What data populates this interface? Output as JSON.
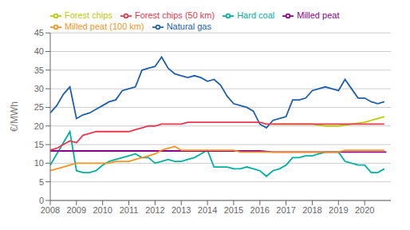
{
  "chart_data": {
    "type": "line",
    "ylabel": "€/MWh",
    "xlim": [
      2008.0,
      2021.0
    ],
    "xticks": [
      2008,
      2009,
      2010,
      2011,
      2012,
      2013,
      2014,
      2015,
      2016,
      2017,
      2018,
      2019,
      2020
    ],
    "ylim": [
      0,
      45
    ],
    "yticks": [
      0,
      5,
      10,
      15,
      20,
      25,
      30,
      35,
      40,
      45
    ],
    "grid": true,
    "legend": "upper left",
    "series": [
      {
        "name": "Natural gas",
        "color": "#2060a8",
        "x": [
          2008.0,
          2008.25,
          2008.5,
          2008.75,
          2009.0,
          2009.25,
          2009.5,
          2009.75,
          2010.0,
          2010.25,
          2010.5,
          2010.75,
          2011.0,
          2011.25,
          2011.5,
          2011.75,
          2012.0,
          2012.25,
          2012.5,
          2012.75,
          2013.0,
          2013.25,
          2013.5,
          2013.75,
          2014.0,
          2014.25,
          2014.5,
          2014.75,
          2015.0,
          2015.25,
          2015.5,
          2015.75,
          2016.0,
          2016.25,
          2016.5,
          2016.75,
          2017.0,
          2017.25,
          2017.5,
          2017.75,
          2018.0,
          2018.25,
          2018.5,
          2018.75,
          2019.0,
          2019.25,
          2019.5,
          2019.75,
          2020.0,
          2020.25,
          2020.5,
          2020.75
        ],
        "values": [
          23.5,
          25.5,
          28.5,
          30.5,
          22.0,
          23.0,
          23.5,
          24.5,
          25.5,
          26.5,
          27.0,
          29.5,
          30.0,
          30.5,
          35.0,
          35.5,
          36.0,
          38.5,
          35.5,
          34.0,
          33.5,
          33.0,
          33.5,
          33.0,
          32.0,
          32.5,
          31.0,
          28.0,
          26.0,
          25.5,
          25.0,
          24.0,
          20.5,
          19.5,
          21.5,
          22.0,
          22.5,
          27.0,
          27.0,
          27.5,
          29.5,
          30.0,
          30.5,
          30.0,
          29.5,
          32.5,
          30.0,
          27.5,
          27.5,
          26.5,
          26.0,
          26.5
        ]
      },
      {
        "name": "Hard coal",
        "color": "#00b0a0",
        "x": [
          2008.0,
          2008.25,
          2008.5,
          2008.75,
          2009.0,
          2009.25,
          2009.5,
          2009.75,
          2010.0,
          2010.25,
          2010.5,
          2010.75,
          2011.0,
          2011.25,
          2011.5,
          2011.75,
          2012.0,
          2012.25,
          2012.5,
          2012.75,
          2013.0,
          2013.25,
          2013.5,
          2013.75,
          2014.0,
          2014.25,
          2014.5,
          2014.75,
          2015.0,
          2015.25,
          2015.5,
          2015.75,
          2016.0,
          2016.25,
          2016.5,
          2016.75,
          2017.0,
          2017.25,
          2017.5,
          2017.75,
          2018.0,
          2018.25,
          2018.5,
          2018.75,
          2019.0,
          2019.25,
          2019.5,
          2019.75,
          2020.0,
          2020.25,
          2020.5,
          2020.75
        ],
        "values": [
          9.5,
          12.5,
          15.5,
          18.5,
          8.0,
          7.5,
          7.5,
          8.0,
          9.5,
          10.5,
          11.0,
          11.5,
          12.0,
          12.5,
          11.5,
          11.5,
          10.0,
          10.5,
          11.0,
          10.5,
          10.5,
          11.0,
          11.5,
          12.5,
          13.5,
          9.0,
          9.0,
          9.0,
          8.5,
          8.5,
          9.0,
          8.5,
          8.0,
          6.5,
          8.0,
          8.5,
          9.5,
          11.5,
          11.5,
          12.0,
          12.0,
          12.5,
          13.0,
          13.0,
          13.0,
          10.5,
          10.0,
          9.5,
          9.5,
          7.5,
          7.5,
          8.5
        ]
      },
      {
        "name": "Milled peat",
        "color": "#8b008b",
        "x": [
          2008.0,
          2016.0,
          2016.5,
          2020.83
        ],
        "values": [
          13.3,
          13.3,
          13.0,
          13.0
        ]
      },
      {
        "name": "Milled peat (100 km)",
        "color": "#f7941d",
        "x": [
          2008.0,
          2008.25,
          2008.5,
          2008.75,
          2009.0,
          2009.25,
          2009.5,
          2009.75,
          2010.0,
          2010.25,
          2010.5,
          2010.75,
          2011.0,
          2011.25,
          2011.5,
          2011.75,
          2012.0,
          2012.25,
          2012.5,
          2012.75,
          2013.0,
          2013.25,
          2013.5,
          2013.75,
          2014.0,
          2014.25,
          2014.5,
          2014.75,
          2015.0,
          2015.25,
          2015.5,
          2015.75,
          2016.0,
          2016.5,
          2017.0,
          2017.5,
          2018.0,
          2018.5,
          2019.0,
          2019.25,
          2019.5,
          2020.0,
          2020.75
        ],
        "values": [
          8.0,
          8.5,
          9.0,
          9.5,
          10.0,
          10.0,
          10.0,
          10.0,
          10.0,
          10.0,
          10.5,
          10.5,
          10.5,
          11.0,
          11.5,
          12.0,
          12.5,
          13.5,
          14.0,
          14.5,
          13.5,
          13.5,
          13.5,
          13.5,
          13.5,
          13.5,
          13.5,
          13.5,
          13.5,
          13.0,
          13.0,
          13.0,
          13.0,
          13.0,
          13.0,
          13.0,
          13.0,
          13.0,
          13.0,
          13.5,
          13.5,
          13.5,
          13.5
        ]
      },
      {
        "name": "Forest chips",
        "color": "#b8cc00",
        "x": [
          2016.5,
          2017.0,
          2017.5,
          2018.0,
          2018.5,
          2019.0,
          2019.5,
          2020.0,
          2020.25,
          2020.5,
          2020.75
        ],
        "values": [
          20.5,
          20.5,
          20.5,
          20.5,
          20.0,
          20.0,
          20.5,
          21.0,
          21.5,
          22.0,
          22.5
        ]
      },
      {
        "name": "Forest chips (50 km)",
        "color": "#e8384f",
        "x": [
          2008.0,
          2008.25,
          2008.5,
          2008.75,
          2009.0,
          2009.25,
          2009.5,
          2009.75,
          2010.0,
          2010.25,
          2010.5,
          2010.75,
          2011.0,
          2011.25,
          2011.5,
          2011.75,
          2012.0,
          2012.25,
          2012.5,
          2012.75,
          2013.0,
          2013.25,
          2013.5,
          2013.75,
          2014.0,
          2014.25,
          2014.5,
          2014.75,
          2015.0,
          2015.25,
          2015.5,
          2015.75,
          2016.0,
          2016.25,
          2016.5,
          2016.75,
          2017.0,
          2017.5,
          2018.0,
          2018.5,
          2019.0,
          2019.5,
          2020.0,
          2020.5,
          2020.75
        ],
        "values": [
          13.5,
          14.0,
          15.0,
          16.0,
          15.5,
          17.5,
          18.0,
          18.5,
          18.5,
          18.5,
          18.5,
          18.5,
          18.5,
          19.0,
          19.5,
          20.0,
          20.0,
          20.5,
          20.5,
          20.5,
          20.5,
          21.0,
          21.0,
          21.0,
          21.0,
          21.0,
          21.0,
          21.0,
          21.0,
          21.0,
          21.0,
          21.0,
          21.0,
          20.5,
          20.5,
          20.5,
          20.5,
          20.5,
          20.5,
          20.5,
          20.5,
          20.5,
          20.5,
          20.5,
          20.5
        ]
      }
    ]
  }
}
